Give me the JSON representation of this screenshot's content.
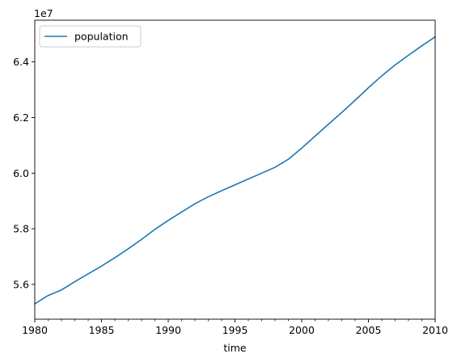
{
  "chart_data": {
    "type": "line",
    "title": "",
    "xlabel": "time",
    "ylabel": "",
    "y_offset_text": "1e7",
    "y_scale_factor": 10000000,
    "xlim": [
      1980,
      2010
    ],
    "ylim": [
      54750000,
      65500000
    ],
    "x_ticks": [
      1980,
      1985,
      1990,
      1995,
      2000,
      2005,
      2010
    ],
    "y_ticks": [
      56000000,
      58000000,
      60000000,
      62000000,
      64000000
    ],
    "y_tick_labels": [
      "5.6",
      "5.8",
      "6.0",
      "6.2",
      "6.4"
    ],
    "x_tick_labels": [
      "1980",
      "1985",
      "1990",
      "1995",
      "2000",
      "2005",
      "2010"
    ],
    "grid": false,
    "legend": {
      "position": "top-left",
      "entries": [
        "population"
      ]
    },
    "series": [
      {
        "name": "population",
        "color": "#1f77b4",
        "x": [
          1980,
          1981,
          1982,
          1983,
          1984,
          1985,
          1986,
          1987,
          1988,
          1989,
          1990,
          1991,
          1992,
          1993,
          1994,
          1995,
          1996,
          1997,
          1998,
          1999,
          2000,
          2001,
          2002,
          2003,
          2004,
          2005,
          2006,
          2007,
          2008,
          2009,
          2010
        ],
        "y": [
          55300000,
          55600000,
          55800000,
          56100000,
          56380000,
          56660000,
          56960000,
          57280000,
          57620000,
          57980000,
          58300000,
          58600000,
          58900000,
          59150000,
          59370000,
          59580000,
          59790000,
          60000000,
          60210000,
          60500000,
          60900000,
          61330000,
          61760000,
          62180000,
          62620000,
          63070000,
          63500000,
          63890000,
          64240000,
          64580000,
          64900000
        ]
      }
    ]
  }
}
